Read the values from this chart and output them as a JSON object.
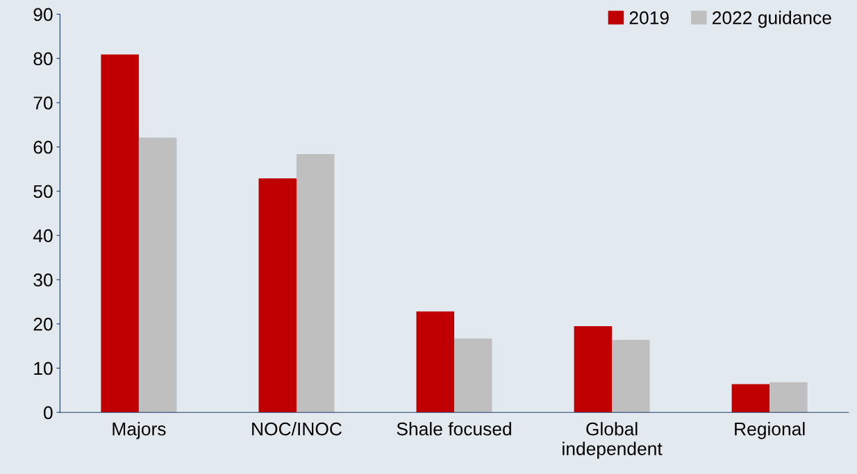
{
  "chart_data": {
    "type": "bar",
    "categories": [
      "Majors",
      "NOC/INOC",
      "Shale focused",
      "Global\nindependent",
      "Regional"
    ],
    "series": [
      {
        "name": "2019",
        "color": "#c00000",
        "values": [
          80.9,
          52.9,
          22.8,
          19.5,
          6.4
        ]
      },
      {
        "name": "2022 guidance",
        "color": "#bfbfbf",
        "values": [
          62.1,
          58.4,
          16.7,
          16.4,
          6.8
        ]
      }
    ],
    "ylim": [
      0,
      90
    ],
    "yticks": [
      0,
      10,
      20,
      30,
      40,
      50,
      60,
      70,
      80,
      90
    ],
    "grid": false,
    "legend": "top right"
  }
}
